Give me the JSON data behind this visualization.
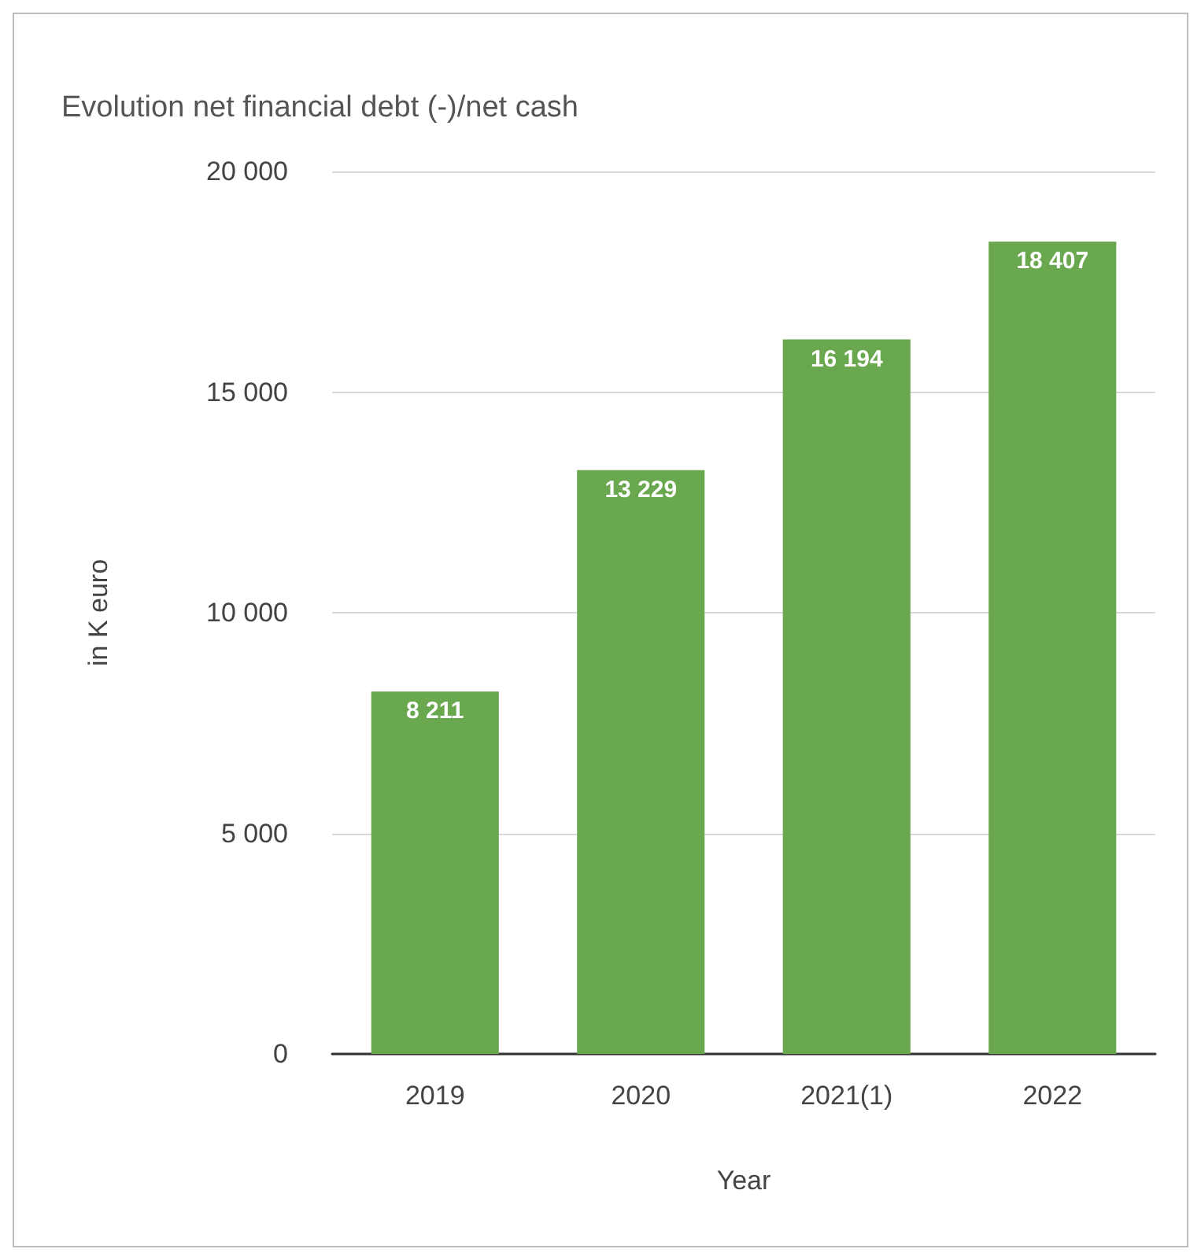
{
  "chart_data": {
    "type": "bar",
    "title": "Evolution net financial debt (-)/net cash",
    "xlabel": "Year",
    "ylabel": "in K euro",
    "categories": [
      "2019",
      "2020",
      "2021(1)",
      "2022"
    ],
    "series": [
      {
        "color": "#6aa84f",
        "values": [
          8211,
          13229,
          16194,
          18407
        ],
        "value_labels": [
          "8 211",
          "13 229",
          "16 194",
          "18 407"
        ]
      }
    ],
    "ylim": [
      0,
      20000
    ],
    "yticks": [
      {
        "value": 0,
        "label": "0"
      },
      {
        "value": 5000,
        "label": "5 000"
      },
      {
        "value": 10000,
        "label": "10 000"
      },
      {
        "value": 15000,
        "label": "15 000"
      },
      {
        "value": 20000,
        "label": "20 000"
      }
    ],
    "grid": "y"
  }
}
